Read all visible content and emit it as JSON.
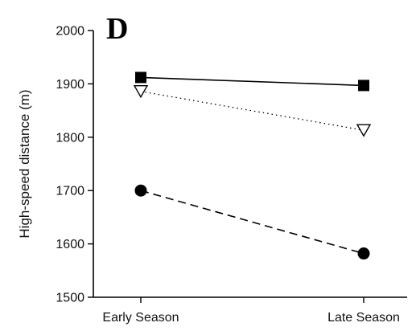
{
  "panel_label": "D",
  "chart_data": {
    "type": "line",
    "categories": [
      "Early Season",
      "Late Season"
    ],
    "ylabel": "High-speed distance (m)",
    "xlabel": "",
    "ylim": [
      1500,
      2000
    ],
    "yticks": [
      1500,
      1600,
      1700,
      1800,
      1900,
      2000
    ],
    "grid": false,
    "legend": "none",
    "series": [
      {
        "values": [
          1912,
          1897
        ],
        "line_style": "solid",
        "marker": "filled-square",
        "color": "#000000"
      },
      {
        "values": [
          1886,
          1813
        ],
        "line_style": "dotted",
        "marker": "open-triangle-down",
        "color": "#000000"
      },
      {
        "values": [
          1700,
          1582
        ],
        "line_style": "dashed",
        "marker": "filled-circle",
        "color": "#000000"
      }
    ]
  }
}
